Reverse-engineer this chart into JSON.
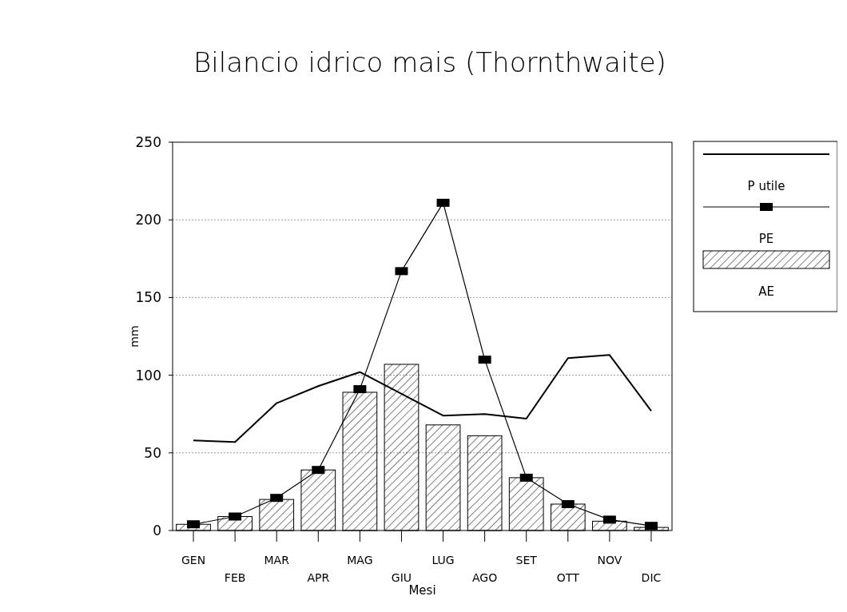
{
  "chart_data": {
    "type": "bar",
    "title": "Bilancio idrico mais (Thornthwaite)",
    "xlabel": "Mesi",
    "ylabel": "mm",
    "categories": [
      "GEN",
      "FEB",
      "MAR",
      "APR",
      "MAG",
      "GIU",
      "LUG",
      "AGO",
      "SET",
      "OTT",
      "NOV",
      "DIC"
    ],
    "series": [
      {
        "name": "P utile",
        "type": "line",
        "color": "#000000",
        "marker": "none",
        "values": [
          58,
          57,
          82,
          93,
          102,
          88,
          74,
          75,
          72,
          111,
          113,
          77
        ]
      },
      {
        "name": "PE",
        "type": "line",
        "color": "#000000",
        "marker": "square",
        "values": [
          4,
          9,
          21,
          39,
          91,
          167,
          211,
          110,
          34,
          17,
          7,
          3
        ]
      },
      {
        "name": "AE",
        "color": "#000000",
        "values": [
          4,
          9,
          20,
          39,
          89,
          107,
          68,
          61,
          34,
          17,
          6,
          2
        ]
      }
    ],
    "ylim": [
      0,
      250
    ],
    "yticks": [
      0,
      50,
      100,
      150,
      200,
      250
    ],
    "grid": "y",
    "legend": "top right"
  }
}
